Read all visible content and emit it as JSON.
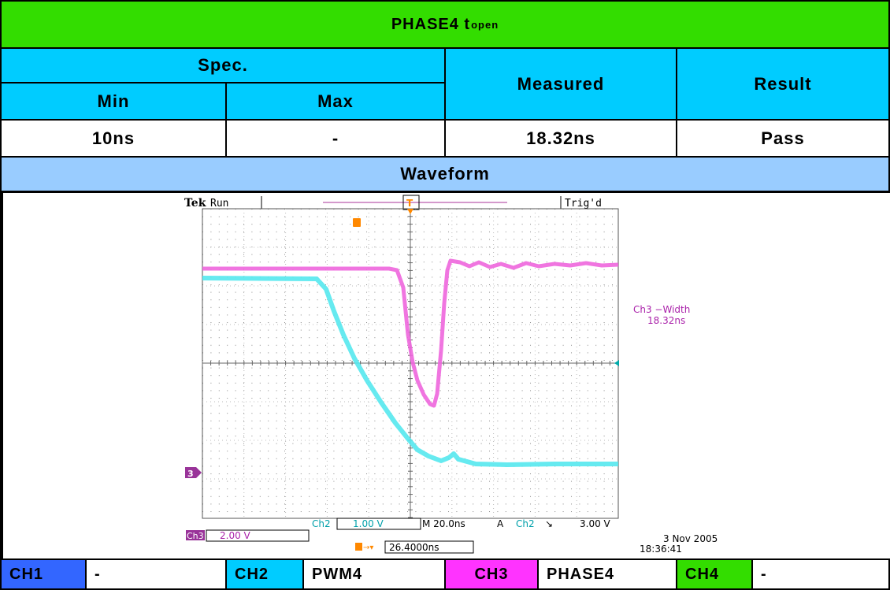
{
  "title": {
    "main": "PHASE4 t",
    "sub": "open"
  },
  "table": {
    "spec_label": "Spec.",
    "min_label": "Min",
    "max_label": "Max",
    "measured_label": "Measured",
    "result_label": "Result",
    "min_value": "10ns",
    "max_value": "-",
    "measured_value": "18.32ns",
    "result_value": "Pass"
  },
  "waveform_label": "Waveform",
  "scope": {
    "brand": "Tek",
    "state": "Run",
    "trigger_status": "Trig'd",
    "trigger_marker": "T",
    "ch3_marker": "3",
    "measurement_name": "Ch3 −Width",
    "measurement_value": "18.32ns",
    "ch2_label": "Ch2",
    "ch2_scale": "1.00 V",
    "timebase": "M 20.0ns",
    "trigger_mode": "A",
    "trigger_source": "Ch2",
    "trigger_slope": "↘",
    "trigger_level": "3.00 V",
    "ch3_label": "Ch3",
    "ch3_scale": "2.00 V",
    "delay": "26.4000ns",
    "date": "3 Nov 2005",
    "time": "18:36:41",
    "colors": {
      "ch2": "#55e8ee",
      "ch3": "#ee66dd",
      "marker": "#ff8800",
      "ch3_badge": "#993399"
    }
  },
  "channels": [
    {
      "id": "CH1",
      "signal": "-",
      "color": "#3366ff"
    },
    {
      "id": "CH2",
      "signal": "PWM4",
      "color": "#00ccff"
    },
    {
      "id": "CH3",
      "signal": "PHASE4",
      "color": "#ff33ff"
    },
    {
      "id": "CH4",
      "signal": "-",
      "color": "#33dd00"
    }
  ]
}
